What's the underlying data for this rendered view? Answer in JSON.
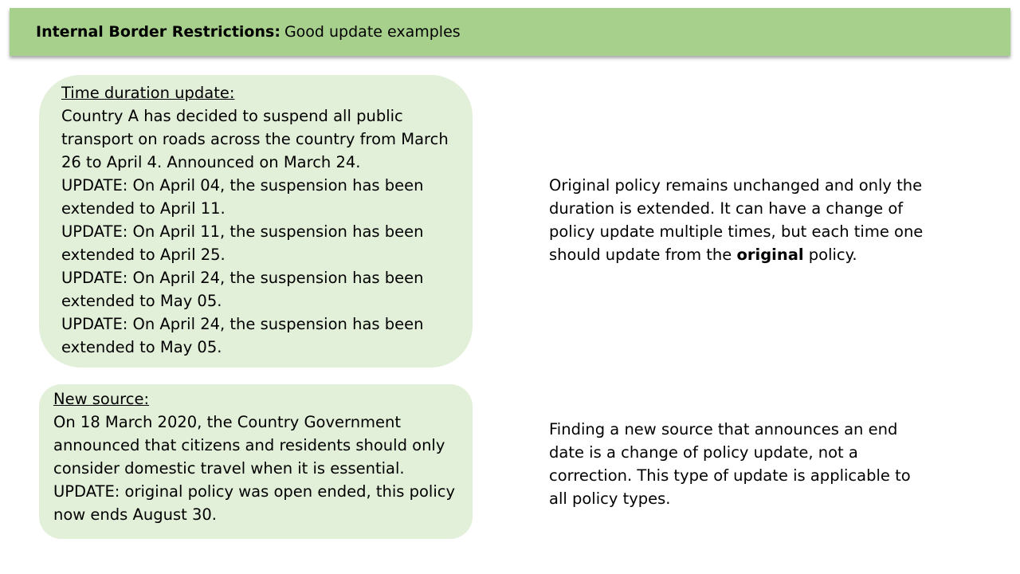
{
  "header": {
    "title_bold": "Internal Border Restrictions:",
    "title_rest": "Good update examples"
  },
  "time_duration_box": {
    "heading": "Time duration update:",
    "paragraphs": [
      "Country A has decided to suspend all public transport on roads across the country from March 26 to April 4. Announced on March 24.",
      "UPDATE: On April 04, the suspension has been extended to April 11.",
      "UPDATE: On April 11, the suspension has been extended to April 25.",
      "UPDATE: On April 24, the suspension has been extended to May 05.",
      "UPDATE: On April 24, the suspension has been extended to May 05."
    ]
  },
  "new_source_box": {
    "heading": "New source:",
    "paragraphs": [
      "On 18 March 2020, the Country Government announced that citizens and residents should only consider domestic travel when it is essential.",
      "UPDATE: original policy was open ended, this policy now ends August 30."
    ]
  },
  "note_duration": {
    "text_before": "Original policy remains unchanged and only the duration is extended. It can have a change of policy update multiple times, but each time one should update from the ",
    "bold_word": "original",
    "text_after": " policy."
  },
  "note_source": {
    "text": "Finding a new source that announces an end date is a change of policy update, not a correction. This type of update is applicable to all policy types."
  },
  "colors": {
    "header_bg": "#a8d08d",
    "box_bg": "#e2efd9"
  }
}
